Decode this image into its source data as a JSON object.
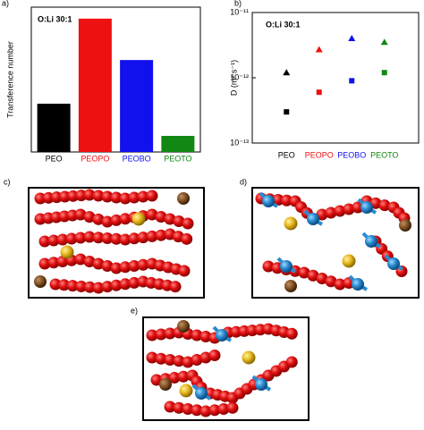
{
  "chart_data": [
    {
      "type": "bar",
      "panel_label": "a)",
      "annotation": "O:Li 30:1",
      "y_label": "Transference number",
      "categories": [
        "PEO",
        "PEOPO",
        "PEOBO",
        "PEOTO"
      ],
      "values": [
        0.21,
        0.58,
        0.4,
        0.07
      ],
      "colors": [
        "#000000",
        "#ee1111",
        "#1111ee",
        "#118811"
      ],
      "ylim": [
        0,
        0.63
      ]
    },
    {
      "type": "scatter",
      "panel_label": "b)",
      "annotation": "O:Li 30:1",
      "y_label": "D (m² s⁻¹)",
      "categories": [
        "PEO",
        "PEOPO",
        "PEOBO",
        "PEOTO"
      ],
      "colors": [
        "#000000",
        "#ee1111",
        "#1111ee",
        "#118811"
      ],
      "log_scale": true,
      "ylim": [
        1e-13,
        1e-11
      ],
      "yticks": [
        {
          "value": 1e-13,
          "label": "10⁻¹³"
        },
        {
          "value": 1e-12,
          "label": "10⁻¹²"
        },
        {
          "value": 1e-11,
          "label": "10⁻¹¹"
        }
      ],
      "series": [
        {
          "marker": "triangle",
          "values": [
            1.2e-12,
            2.7e-12,
            4e-12,
            3.5e-12
          ]
        },
        {
          "marker": "square",
          "values": [
            3e-13,
            6e-13,
            9e-13,
            1.2e-12
          ]
        }
      ]
    }
  ],
  "panels": [
    "c)",
    "d)",
    "e)"
  ]
}
